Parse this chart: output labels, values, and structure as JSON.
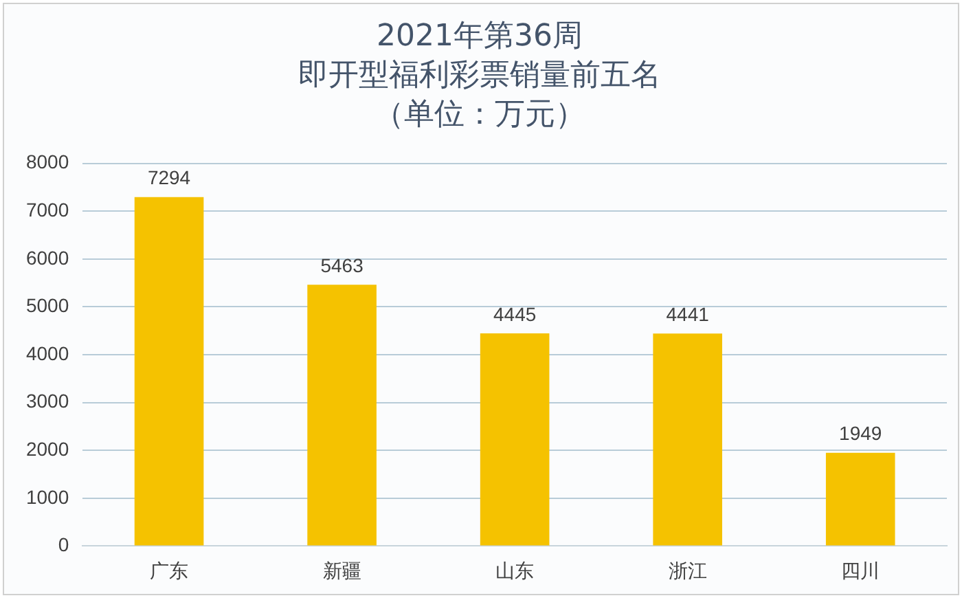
{
  "chart_data": {
    "type": "bar",
    "title": "2021年第36周",
    "subtitle": "即开型福利彩票销量前五名",
    "annotations": [
      "（单位：万元）"
    ],
    "categories": [
      "广东",
      "新疆",
      "山东",
      "浙江",
      "四川"
    ],
    "values": [
      7294,
      5463,
      4445,
      4441,
      1949
    ],
    "color": "#f5c200",
    "ylim": [
      0,
      8000
    ],
    "yticks": [
      0,
      1000,
      2000,
      3000,
      4000,
      5000,
      6000,
      7000,
      8000
    ],
    "grid": "y",
    "data_labels": true,
    "legend": false
  }
}
